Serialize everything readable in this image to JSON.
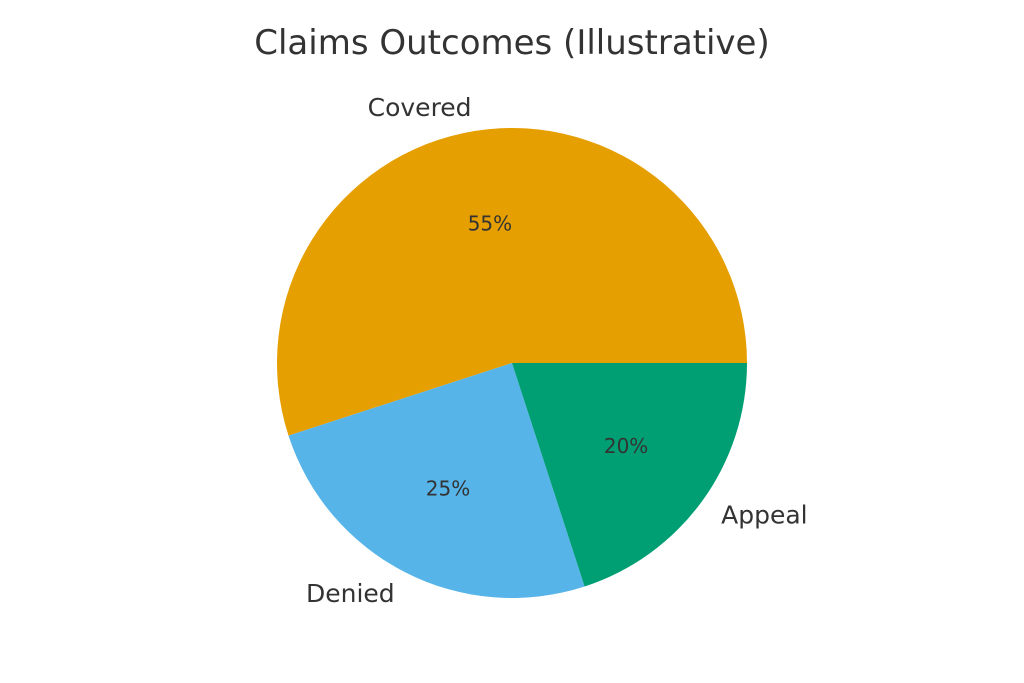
{
  "chart_data": {
    "type": "pie",
    "title": "Claims Outcomes (Illustrative)",
    "categories": [
      "Covered",
      "Denied",
      "Appeal"
    ],
    "values": [
      55,
      25,
      20
    ],
    "value_labels": [
      "55%",
      "25%",
      "20%"
    ],
    "colors": [
      "#E69F00",
      "#56B4E9",
      "#009E73"
    ],
    "start_angle_deg": 0,
    "direction": "counterclockwise"
  }
}
